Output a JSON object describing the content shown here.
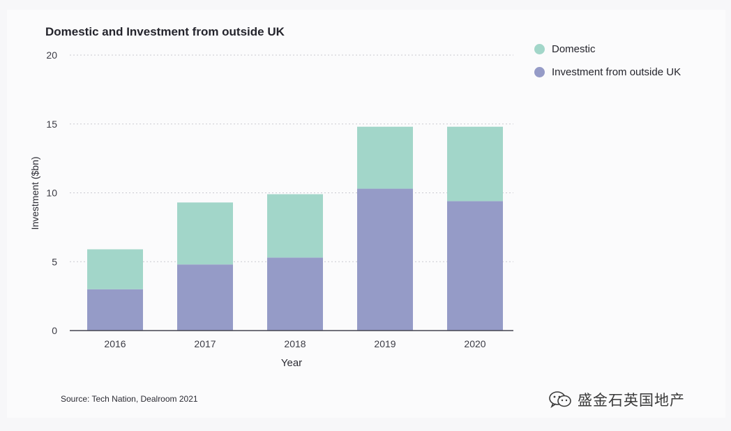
{
  "chart_data": {
    "type": "bar",
    "stacked": true,
    "title": "Domestic and Investment from outside UK",
    "xlabel": "Year",
    "ylabel": "Investment ($bn)",
    "categories": [
      "2016",
      "2017",
      "2018",
      "2019",
      "2020"
    ],
    "series": [
      {
        "name": "Investment from outside UK",
        "color": "#959bc7",
        "values": [
          3.0,
          4.8,
          5.3,
          10.3,
          9.4
        ]
      },
      {
        "name": "Domestic",
        "color": "#a2d6c9",
        "values": [
          2.9,
          4.5,
          4.6,
          4.5,
          5.4
        ]
      }
    ],
    "ylim": [
      0,
      20
    ],
    "yticks": [
      0,
      5,
      10,
      15,
      20
    ],
    "grid": true,
    "legend_position": "top-right",
    "legend": [
      "Domestic",
      "Investment from outside UK"
    ]
  },
  "source": "Source: Tech Nation, Dealroom 2021",
  "watermark": {
    "text": "盛金石英国地产",
    "icon": "wechat-icon"
  }
}
